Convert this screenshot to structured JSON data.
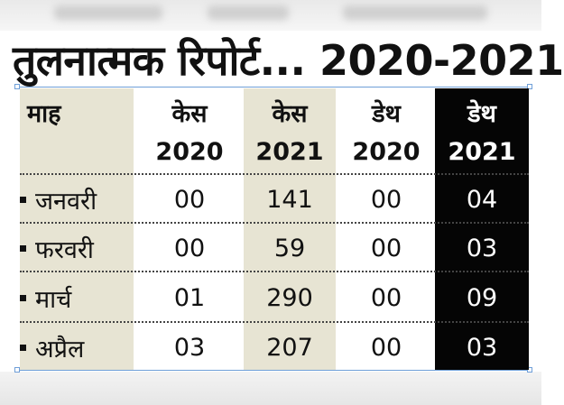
{
  "title": "तुलनात्मक रिपोर्ट... 2020-2021",
  "columns": [
    {
      "line1": "माह",
      "line2": ""
    },
    {
      "line1": "केस",
      "line2": "2020"
    },
    {
      "line1": "केस",
      "line2": "2021"
    },
    {
      "line1": "डेथ",
      "line2": "2020"
    },
    {
      "line1": "डेथ",
      "line2": "2021"
    }
  ],
  "rows": [
    {
      "month": "जनवरी",
      "cases2020": "00",
      "cases2021": "141",
      "deaths2020": "00",
      "deaths2021": "04"
    },
    {
      "month": "फरवरी",
      "cases2020": "00",
      "cases2021": "59",
      "deaths2020": "00",
      "deaths2021": "03"
    },
    {
      "month": "मार्च",
      "cases2020": "01",
      "cases2021": "290",
      "deaths2020": "00",
      "deaths2021": "09"
    },
    {
      "month": "अप्रैल",
      "cases2020": "03",
      "cases2021": "207",
      "deaths2020": "00",
      "deaths2021": "03"
    }
  ],
  "colors": {
    "beige": "#e7e4d3",
    "dark": "#050505",
    "text": "#111111"
  }
}
